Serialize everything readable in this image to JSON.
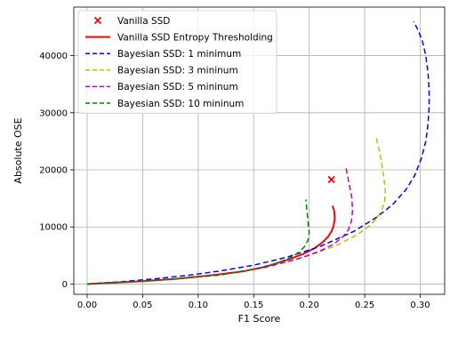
{
  "chart_data": {
    "type": "line",
    "xlabel": "F1 Score",
    "ylabel": "Absolute OSE",
    "xlim": [
      -0.012,
      0.322
    ],
    "ylim": [
      -1800,
      48500
    ],
    "xticks": [
      0.0,
      0.05,
      0.1,
      0.15,
      0.2,
      0.25,
      0.3
    ],
    "xtick_labels": [
      "0.00",
      "0.05",
      "0.10",
      "0.15",
      "0.20",
      "0.25",
      "0.30"
    ],
    "yticks": [
      0,
      10000,
      20000,
      30000,
      40000
    ],
    "ytick_labels": [
      "0",
      "10000",
      "20000",
      "30000",
      "40000"
    ],
    "grid": true,
    "legend_position": "top-left",
    "series": [
      {
        "name": "Vanilla SSD",
        "kind": "marker",
        "marker": "x",
        "color": "#ff0000",
        "x": [
          0.22
        ],
        "y": [
          18300
        ]
      },
      {
        "name": "Vanilla SSD Entropy Thresholding",
        "kind": "line",
        "dash": "solid",
        "color": "#ff0000",
        "x": [
          0.0,
          0.02,
          0.05,
          0.08,
          0.11,
          0.14,
          0.16,
          0.18,
          0.195,
          0.205,
          0.212,
          0.217,
          0.22,
          0.222,
          0.223,
          0.2225,
          0.221
        ],
        "y": [
          0,
          200,
          500,
          900,
          1500,
          2200,
          3000,
          4200,
          5300,
          6300,
          7300,
          8300,
          9200,
          10200,
          11500,
          12800,
          13700
        ]
      },
      {
        "name": "Bayesian SSD: 1 minimum",
        "kind": "line",
        "dash": "dashed",
        "color": "#0000ff",
        "x": [
          0.0,
          0.03,
          0.06,
          0.09,
          0.12,
          0.15,
          0.18,
          0.21,
          0.24,
          0.26,
          0.275,
          0.287,
          0.295,
          0.301,
          0.305,
          0.307,
          0.308,
          0.308,
          0.307,
          0.305,
          0.302,
          0.298,
          0.294
        ],
        "y": [
          0,
          400,
          900,
          1500,
          2300,
          3300,
          4700,
          6600,
          9200,
          11600,
          13900,
          16500,
          19000,
          22000,
          25000,
          28000,
          31000,
          34000,
          37000,
          40000,
          42500,
          44500,
          46000
        ]
      },
      {
        "name": "Bayesian SSD: 3 mininum",
        "kind": "line",
        "dash": "dashed",
        "color": "#bfbf00",
        "x": [
          0.0,
          0.04,
          0.08,
          0.12,
          0.16,
          0.2,
          0.225,
          0.24,
          0.252,
          0.26,
          0.265,
          0.268,
          0.2685,
          0.267,
          0.264,
          0.26
        ],
        "y": [
          0,
          400,
          900,
          1600,
          2900,
          5000,
          6800,
          8300,
          9800,
          11300,
          12800,
          14500,
          16500,
          19000,
          22500,
          26000
        ]
      },
      {
        "name": "Bayesian SSD: 5 mininum",
        "kind": "line",
        "dash": "dashed",
        "color": "#bf00bf",
        "x": [
          0.0,
          0.04,
          0.08,
          0.12,
          0.16,
          0.19,
          0.21,
          0.222,
          0.23,
          0.235,
          0.238,
          0.239,
          0.2385,
          0.236,
          0.233
        ],
        "y": [
          0,
          400,
          900,
          1600,
          2900,
          4400,
          5800,
          7000,
          8200,
          9400,
          11000,
          12800,
          15000,
          17500,
          20500
        ]
      },
      {
        "name": "Bayesian SSD: 10 mininum",
        "kind": "line",
        "dash": "dashed",
        "color": "#008000",
        "x": [
          0.0,
          0.04,
          0.08,
          0.12,
          0.15,
          0.17,
          0.183,
          0.191,
          0.196,
          0.199,
          0.2,
          0.199,
          0.198,
          0.197
        ],
        "y": [
          0,
          400,
          900,
          1600,
          2600,
          3600,
          4600,
          5600,
          6600,
          7700,
          9000,
          10800,
          12800,
          14800
        ]
      }
    ]
  }
}
